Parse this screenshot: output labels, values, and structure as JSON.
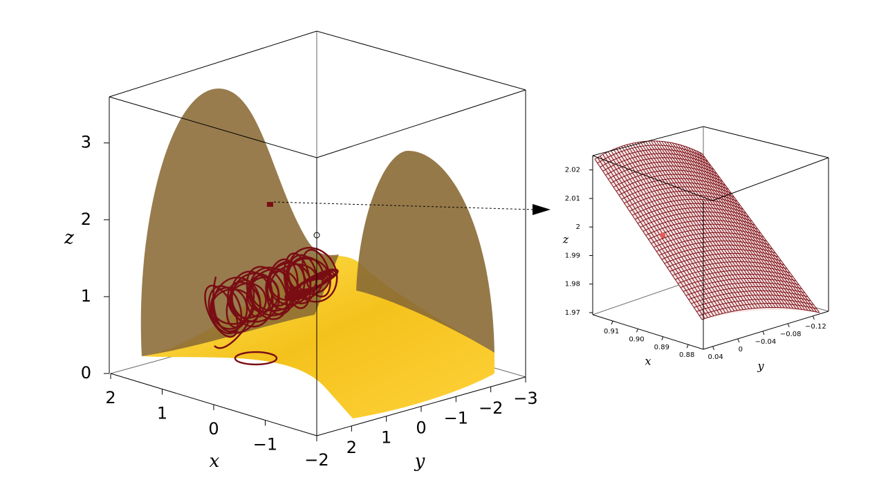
{
  "chart_data": [
    {
      "type": "surface3d",
      "xlabel": "x",
      "ylabel": "y",
      "zlabel": "z",
      "xlim": [
        2,
        -2
      ],
      "xticks": [
        2,
        1,
        0,
        {
          "value": -1,
          "label": "−1"
        },
        {
          "value": -2,
          "label": "−2"
        }
      ],
      "ylim": [
        3,
        -3
      ],
      "yticks": [
        2,
        1,
        0,
        {
          "value": -1,
          "label": "−1"
        },
        {
          "value": -2,
          "label": "−2"
        },
        {
          "value": -3,
          "label": "−3"
        }
      ],
      "zlim": [
        0,
        3.6
      ],
      "zticks": [
        0,
        1,
        2,
        3
      ]
    },
    {
      "type": "surface3d",
      "xlabel": "x",
      "ylabel": "y",
      "zlabel": "z",
      "xlim": [
        0.918,
        0.874
      ],
      "xticks": [
        0.91,
        {
          "value": 0.9,
          "label": "0.90"
        },
        0.89,
        0.88
      ],
      "ylim": [
        0.055,
        -0.145
      ],
      "yticks": [
        0.04,
        0,
        {
          "value": -0.04,
          "label": "−0.04"
        },
        {
          "value": -0.08,
          "label": "−0.08"
        },
        {
          "value": -0.12,
          "label": "−0.12"
        }
      ],
      "zlim": [
        1.97,
        2.025
      ],
      "zticks": [
        1.97,
        1.98,
        1.99,
        2,
        2.01,
        2.02
      ]
    }
  ]
}
